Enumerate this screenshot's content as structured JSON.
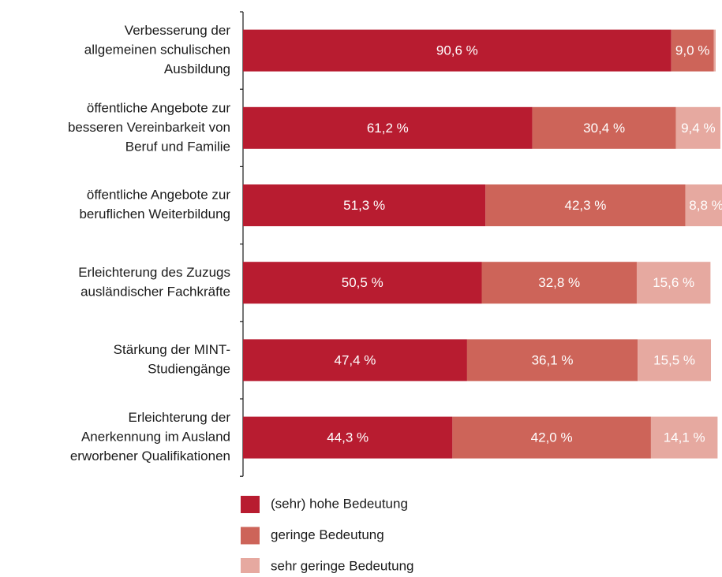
{
  "chart_data": {
    "type": "stacked_barh",
    "categories": [
      [
        "Verbesserung der",
        "allgemeinen schulischen",
        "Ausbildung"
      ],
      [
        "öffentliche Angebote zur",
        "besseren Vereinbarkeit von",
        "Beruf und Familie"
      ],
      [
        "öffentliche Angebote zur",
        "beruflichen Weiterbildung"
      ],
      [
        "Erleichterung des Zuzugs",
        "ausländischer Fachkräfte"
      ],
      [
        "Stärkung der MINT-",
        "Studiengänge"
      ],
      [
        "Erleichterung der",
        "Anerkennung im Ausland",
        "erworbener Qualifikationen"
      ]
    ],
    "series": [
      {
        "name": "(sehr) hohe Bedeutung",
        "color": "#b81c30",
        "values": [
          90.6,
          61.2,
          51.3,
          50.5,
          47.4,
          44.3
        ],
        "value_labels": [
          "90,6 %",
          "61,2 %",
          "51,3 %",
          "50,5 %",
          "47,4 %",
          "44,3 %"
        ]
      },
      {
        "name": "geringe Bedeutung",
        "color": "#cd6459",
        "values": [
          9.0,
          30.4,
          42.3,
          32.8,
          36.1,
          42.0
        ],
        "value_labels": [
          "9,0 %",
          "30,4 %",
          "42,3 %",
          "32,8 %",
          "36,1 %",
          "42,0 %"
        ]
      },
      {
        "name": "sehr geringe Bedeutung",
        "color": "#e6a9a0",
        "values": [
          0.4,
          9.4,
          8.8,
          15.6,
          15.5,
          14.1
        ],
        "value_labels": [
          null,
          "9,4 %",
          "8,8 %",
          "15,6 %",
          "15,5 %",
          "14,1 %"
        ]
      }
    ],
    "xlim": [
      0,
      100
    ]
  }
}
